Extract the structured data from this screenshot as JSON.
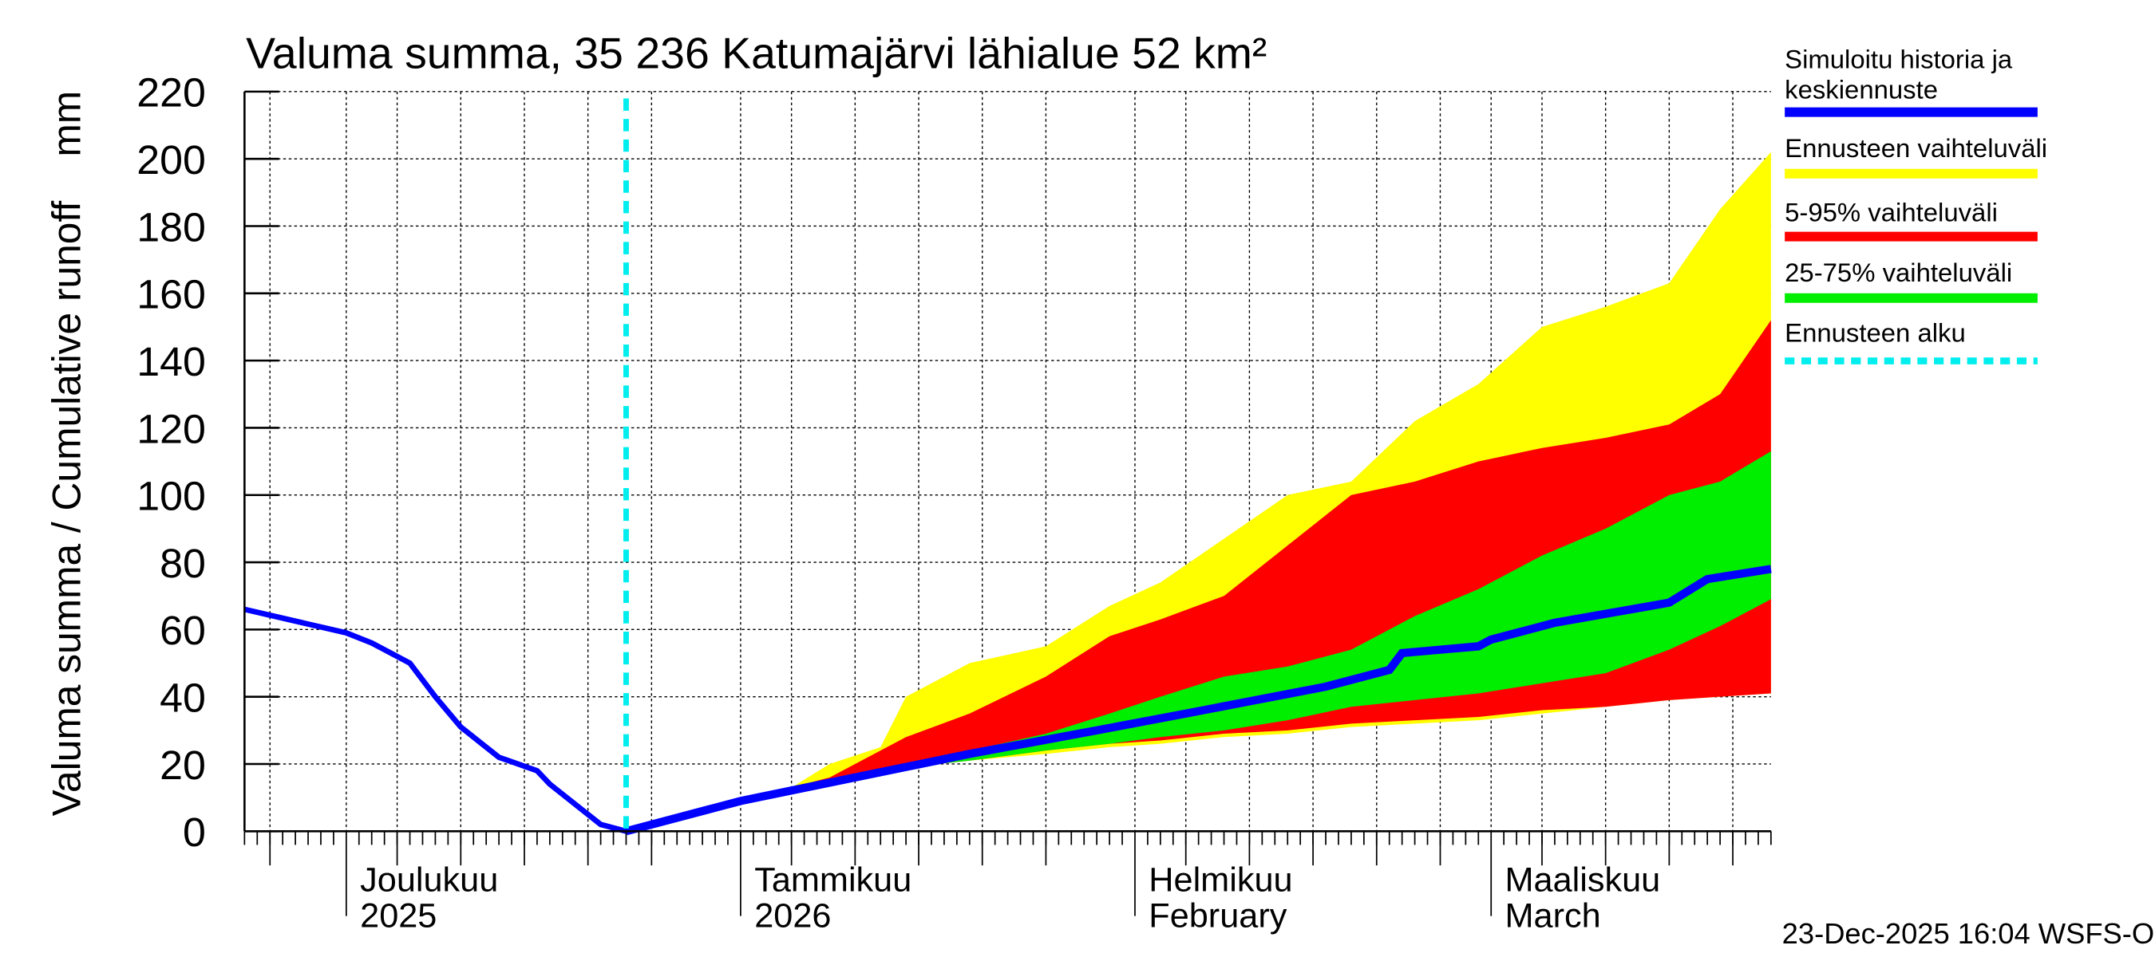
{
  "chart_data": {
    "type": "area",
    "title": "Valuma summa, 35 236 Katumajärvi lähialue 52 km²",
    "ylabel": "Valuma summa / Cumulative runoff    mm",
    "ylim": [
      0,
      220
    ],
    "yticks": [
      0,
      20,
      40,
      60,
      80,
      100,
      120,
      140,
      160,
      180,
      200,
      220
    ],
    "xlim": [
      "2025-11-23",
      "2026-03-23"
    ],
    "grid": true,
    "month_labels": [
      {
        "date": "2025-12-01",
        "line1": "Joulukuu",
        "line2": "2025"
      },
      {
        "date": "2026-01-01",
        "line1": "Tammikuu",
        "line2": "2026"
      },
      {
        "date": "2026-02-01",
        "line1": "Helmikuu",
        "line2": "February"
      },
      {
        "date": "2026-03-01",
        "line1": "Maaliskuu",
        "line2": "March"
      }
    ],
    "forecast_start": "2025-12-23",
    "history": {
      "x": [
        "2025-11-23",
        "2025-12-01",
        "2025-12-03",
        "2025-12-06",
        "2025-12-08",
        "2025-12-10",
        "2025-12-12",
        "2025-12-13",
        "2025-12-16",
        "2025-12-17",
        "2025-12-20",
        "2025-12-21",
        "2025-12-23"
      ],
      "y": [
        66,
        59,
        56,
        50,
        40,
        31,
        25,
        22,
        18,
        14,
        5,
        2,
        0
      ]
    },
    "median": {
      "x": [
        "2025-12-23",
        "2026-01-01",
        "2026-01-10",
        "2026-01-19",
        "2026-01-29",
        "2026-02-05",
        "2026-02-16",
        "2026-02-21",
        "2026-02-22",
        "2026-02-28",
        "2026-03-01",
        "2026-03-06",
        "2026-03-15",
        "2026-03-18",
        "2026-03-23"
      ],
      "y": [
        0,
        9,
        16,
        23,
        30,
        35,
        43,
        48,
        53,
        55,
        57,
        62,
        68,
        75,
        78
      ]
    },
    "band_x": [
      "2025-12-23",
      "2025-12-30",
      "2026-01-05",
      "2026-01-08",
      "2026-01-12",
      "2026-01-14",
      "2026-01-19",
      "2026-01-25",
      "2026-01-30",
      "2026-02-03",
      "2026-02-08",
      "2026-02-13",
      "2026-02-18",
      "2026-02-23",
      "2026-02-28",
      "2026-03-05",
      "2026-03-10",
      "2026-03-15",
      "2026-03-19",
      "2026-03-23"
    ],
    "bands": [
      {
        "name": "Ennusteen vaihteluväli",
        "color": "#ffff00",
        "low": [
          0,
          7,
          13,
          15,
          17,
          19,
          21,
          23,
          25,
          26,
          28,
          29,
          31,
          32,
          33,
          35,
          37,
          39,
          40,
          41
        ],
        "high": [
          0,
          7,
          13,
          20,
          25,
          40,
          50,
          55,
          67,
          74,
          87,
          100,
          104,
          122,
          133,
          150,
          156,
          163,
          185,
          202
        ]
      },
      {
        "name": "5-95% vaihteluväli",
        "color": "#ff0000",
        "low": [
          0,
          7,
          13,
          15,
          18,
          19,
          21,
          24,
          26,
          27,
          29,
          30,
          32,
          33,
          34,
          36,
          37,
          39,
          40,
          41
        ],
        "high": [
          0,
          7,
          13,
          16,
          24,
          28,
          35,
          46,
          58,
          63,
          70,
          85,
          100,
          104,
          110,
          114,
          117,
          121,
          130,
          152
        ]
      },
      {
        "name": "25-75% vaihteluväli",
        "color": "#00ee00",
        "low": [
          0,
          7,
          13,
          16,
          18,
          19,
          21,
          24,
          26,
          28,
          30,
          33,
          37,
          39,
          41,
          44,
          47,
          54,
          61,
          69
        ],
        "high": [
          0,
          7,
          13,
          16,
          18,
          20,
          24,
          29,
          35,
          40,
          46,
          49,
          54,
          64,
          72,
          82,
          90,
          100,
          104,
          113
        ]
      }
    ],
    "legend": {
      "placement": "right",
      "entries": [
        {
          "label": "Simuloitu historia ja",
          "label2": "keskiennuste",
          "color": "#0000ff",
          "style": "solid"
        },
        {
          "label": "Ennusteen vaihteluväli",
          "color": "#ffff00",
          "style": "solid"
        },
        {
          "label": "5-95% vaihteluväli",
          "color": "#ff0000",
          "style": "solid"
        },
        {
          "label": "25-75% vaihteluväli",
          "color": "#00ee00",
          "style": "solid"
        },
        {
          "label": "Ennusteen alku",
          "color": "#00eeee",
          "style": "dotted"
        }
      ]
    },
    "colors": {
      "median": "#0000ff",
      "forecast_start": "#00eeee"
    }
  },
  "footer": {
    "timestamp": "23-Dec-2025 16:04 WSFS-O"
  }
}
